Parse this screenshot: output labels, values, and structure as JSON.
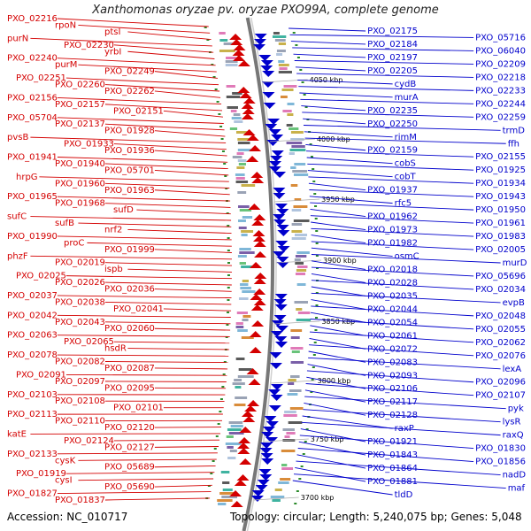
{
  "title": "Xanthomonas oryzae pv. oryzae PXO99A, complete genome",
  "footer": {
    "accession": "Accession: NC_010717",
    "topology": "Topology: circular; Length: 5,240,075 bp; Genes: 5,048"
  },
  "colors": {
    "left_strand": "#d40000",
    "right_strand": "#0000cc",
    "backbone": "#888888"
  },
  "scale_labels": [
    "4050 kbp",
    "4000 kbp",
    "3950 kbp",
    "3900 kbp",
    "3850 kbp",
    "3800 kbp",
    "3750 kbp",
    "3700 kbp"
  ],
  "left_labels": [
    "PXO_02216",
    "rpoN",
    "ptsI",
    "purN",
    "PXO_02230",
    "yrbI",
    "PXO_02240",
    "purM",
    "PXO_02249",
    "PXO_02251",
    "PXO_02260",
    "PXO_02262",
    "PXO_02156",
    "PXO_02157",
    "PXO_02151",
    "PXO_05704",
    "PXO_02137",
    "PXO_01928",
    "pvsB",
    "PXO_01933",
    "PXO_01936",
    "PXO_01941",
    "PXO_01940",
    "PXO_05701",
    "hrpG",
    "PXO_01960",
    "PXO_01963",
    "PXO_01965",
    "PXO_01968",
    "sufD",
    "sufC",
    "sufB",
    "nrf2",
    "PXO_01990",
    "proC",
    "PXO_01999",
    "phzF",
    "PXO_02019",
    "ispb",
    "PXO_02025",
    "PXO_02026",
    "PXO_02036",
    "PXO_02037",
    "PXO_02038",
    "PXO_02041",
    "PXO_02042",
    "PXO_02043",
    "PXO_02060",
    "PXO_02063",
    "PXO_02065",
    "hsdR",
    "PXO_02078",
    "PXO_02082",
    "PXO_02087",
    "PXO_02091",
    "PXO_02097",
    "PXO_02095",
    "PXO_02103",
    "PXO_02108",
    "PXO_02101",
    "PXO_02113",
    "PXO_02110",
    "PXO_02120",
    "katE",
    "PXO_02124",
    "PXO_02127",
    "PXO_02133",
    "cysK",
    "PXO_05689",
    "PXO_01919",
    "cysI",
    "PXO_05690",
    "PXO_01827",
    "PXO_01837"
  ],
  "right_labels": [
    "PXO_02175",
    "PXO_05716",
    "PXO_02184",
    "PXO_06040",
    "PXO_02197",
    "PXO_02209",
    "PXO_02205",
    "PXO_02218",
    "cydB",
    "PXO_02233",
    "murA",
    "PXO_02244",
    "PXO_02235",
    "PXO_02259",
    "PXO_02250",
    "trmD",
    "rimM",
    "ffh",
    "PXO_02159",
    "PXO_02155",
    "cobS",
    "PXO_01925",
    "cobT",
    "PXO_01934",
    "PXO_01937",
    "PXO_01943",
    "rfc5",
    "PXO_01950",
    "PXO_01962",
    "PXO_01961",
    "PXO_01973",
    "PXO_01983",
    "PXO_01982",
    "PXO_02005",
    "osmC",
    "murD",
    "PXO_02018",
    "PXO_05696",
    "PXO_02028",
    "PXO_02034",
    "PXO_02035",
    "evpB",
    "PXO_02044",
    "PXO_02048",
    "PXO_02054",
    "PXO_02055",
    "PXO_02061",
    "PXO_02062",
    "PXO_02072",
    "PXO_02076",
    "PXO_02083",
    "lexA",
    "PXO_02093",
    "PXO_02096",
    "PXO_02106",
    "PXO_02107",
    "PXO_02117",
    "pyk",
    "PXO_02128",
    "lysR",
    "raxP",
    "raxQ",
    "PXO_01921",
    "PXO_01830",
    "PXO_01843",
    "PXO_01856",
    "PXO_01864",
    "nadD",
    "PXO_01881",
    "maf",
    "tldD"
  ]
}
